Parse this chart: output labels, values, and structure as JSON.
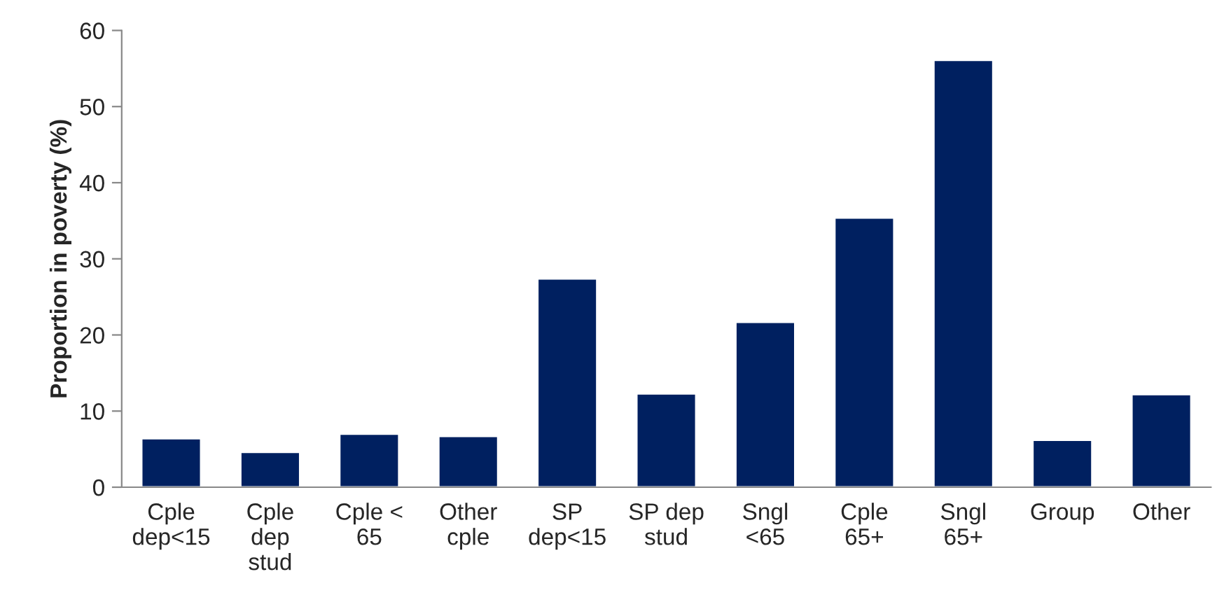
{
  "chart_data": {
    "type": "bar",
    "ylabel": "Proportion in poverty (%)",
    "categories": [
      "Cple\ndep<15",
      "Cple\ndep\nstud",
      "Cple <\n65",
      "Other\ncple",
      "SP\ndep<15",
      "SP dep\nstud",
      "Sngl\n<65",
      "Cple\n65+",
      "Sngl\n65+",
      "Group",
      "Other"
    ],
    "values": [
      6.4,
      4.6,
      7.0,
      6.7,
      27.4,
      12.3,
      21.7,
      35.4,
      56.1,
      6.2,
      12.2
    ],
    "color": "#002060",
    "ylim": [
      0,
      60
    ],
    "yticks": [
      0,
      10,
      20,
      30,
      40,
      50,
      60
    ],
    "grid": false,
    "legend": false
  }
}
